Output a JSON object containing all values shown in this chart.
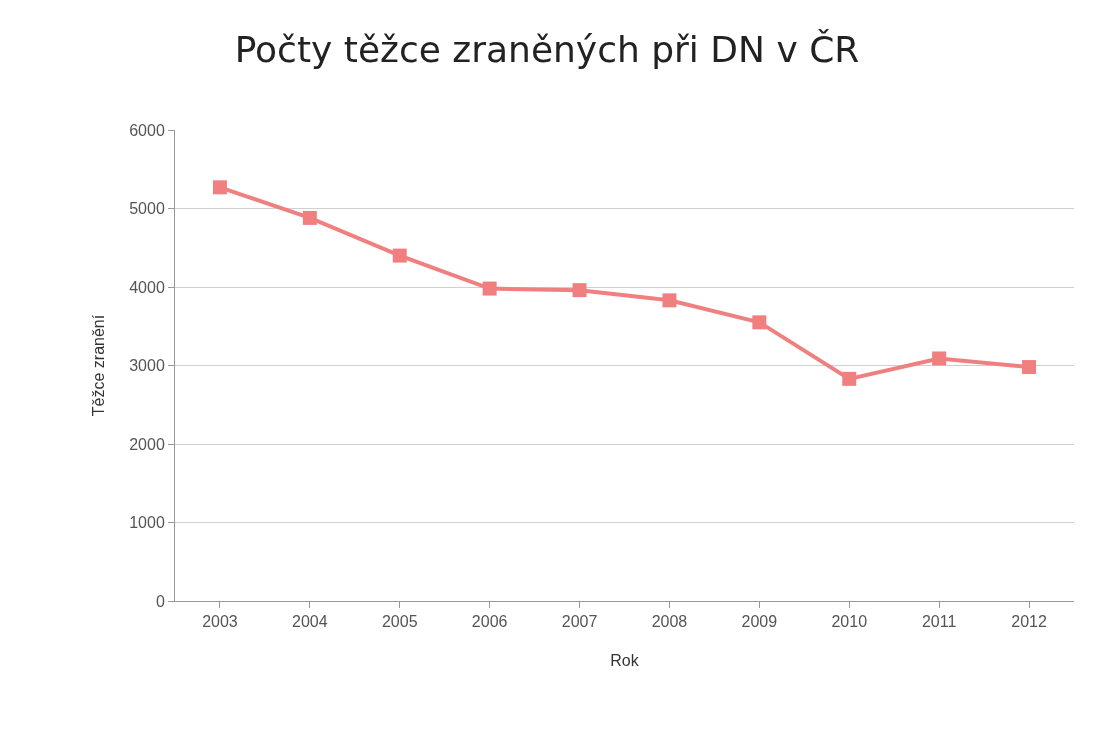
{
  "chart_data": {
    "type": "line",
    "title": "Počty těžce zraněných při DN v ČR",
    "xlabel": "Rok",
    "ylabel": "Těžce zranění",
    "categories": [
      "2003",
      "2004",
      "2005",
      "2006",
      "2007",
      "2008",
      "2009",
      "2010",
      "2011",
      "2012"
    ],
    "series": [
      {
        "color": "#f08080",
        "values": [
          5270,
          4880,
          4400,
          3980,
          3960,
          3830,
          3550,
          2830,
          3090,
          2980
        ]
      }
    ],
    "ylim": [
      0,
      6000
    ],
    "yticks": [
      0,
      1000,
      2000,
      3000,
      4000,
      5000,
      6000
    ],
    "grid": "y",
    "marker": "square",
    "line_style": "solid"
  }
}
